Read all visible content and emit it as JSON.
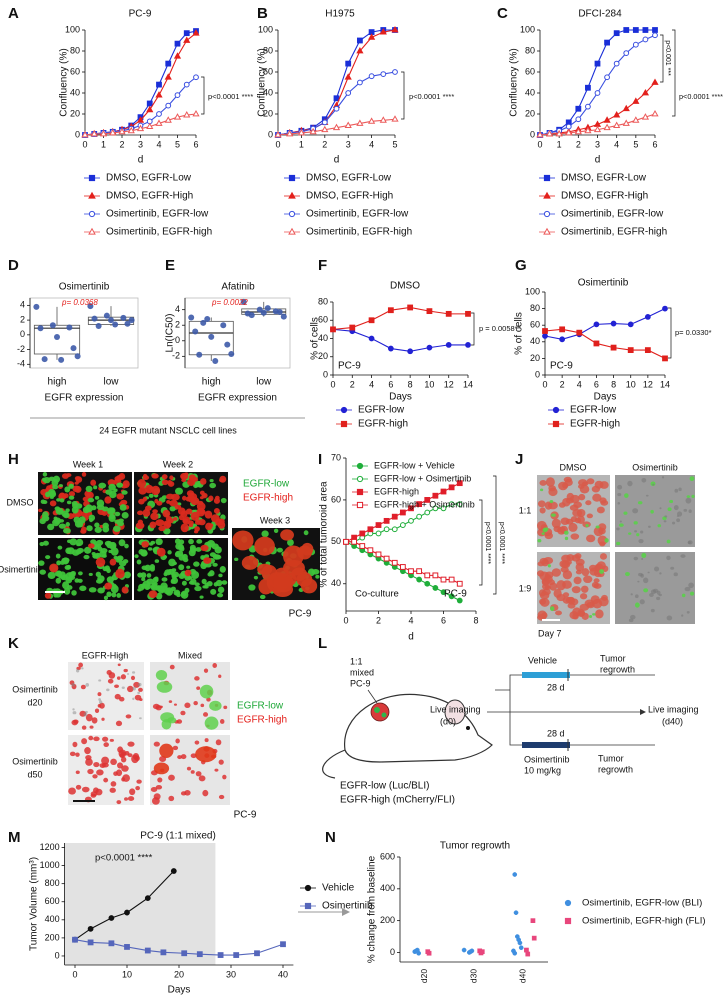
{
  "chart_data": [
    {
      "type": "line",
      "panel": "A",
      "title": "PC-9",
      "x_label": "d",
      "y_label": "Confluency (%)",
      "x": [
        0,
        0.5,
        1,
        1.5,
        2,
        2.5,
        3,
        3.5,
        4,
        4.5,
        5,
        5.5,
        6
      ],
      "xlim": [
        0,
        6
      ],
      "xticks": [
        0,
        1,
        2,
        3,
        4,
        5,
        6
      ],
      "ylim": [
        0,
        100
      ],
      "yticks": [
        0,
        20,
        40,
        60,
        80,
        100
      ],
      "series": [
        {
          "name": "DMSO, EGFR-Low",
          "color": "#1a2fd8",
          "marker": "square",
          "filled": true,
          "values": [
            0,
            1,
            2,
            3,
            5,
            9,
            17,
            30,
            48,
            68,
            87,
            97,
            99
          ]
        },
        {
          "name": "DMSO, EGFR-High",
          "color": "#e3201c",
          "marker": "triangle",
          "filled": true,
          "values": [
            0,
            1,
            2,
            3,
            5,
            8,
            14,
            24,
            38,
            55,
            75,
            90,
            97
          ]
        },
        {
          "name": "Osimertinib, EGFR-low",
          "color": "#3a4fe0",
          "marker": "circle",
          "filled": false,
          "values": [
            0,
            1,
            2,
            3,
            4,
            6,
            9,
            13,
            20,
            28,
            38,
            48,
            55
          ]
        },
        {
          "name": "Osimertinib, EGFR-high",
          "color": "#ec5a5a",
          "marker": "triangle",
          "filled": false,
          "values": [
            0,
            1,
            1,
            2,
            3,
            4,
            6,
            8,
            11,
            14,
            17,
            19,
            20
          ]
        }
      ],
      "annotations": [
        "p<0.0001 ****"
      ]
    },
    {
      "type": "line",
      "panel": "B",
      "title": "H1975",
      "x_label": "d",
      "y_label": "Confluency (%)",
      "x": [
        0,
        0.5,
        1,
        1.5,
        2,
        2.5,
        3,
        3.5,
        4,
        4.5,
        5
      ],
      "xlim": [
        0,
        5
      ],
      "xticks": [
        0,
        1,
        2,
        3,
        4,
        5
      ],
      "ylim": [
        0,
        100
      ],
      "yticks": [
        0,
        20,
        40,
        60,
        80,
        100
      ],
      "series": [
        {
          "name": "DMSO, EGFR-Low",
          "color": "#1a2fd8",
          "marker": "square",
          "filled": true,
          "values": [
            0,
            2,
            4,
            7,
            15,
            35,
            68,
            90,
            98,
            100,
            100
          ]
        },
        {
          "name": "DMSO, EGFR-High",
          "color": "#e3201c",
          "marker": "triangle",
          "filled": true,
          "values": [
            0,
            2,
            4,
            6,
            12,
            28,
            55,
            80,
            93,
            98,
            100
          ]
        },
        {
          "name": "Osimertinib, EGFR-low",
          "color": "#3a4fe0",
          "marker": "circle",
          "filled": false,
          "values": [
            0,
            2,
            3,
            6,
            12,
            25,
            40,
            50,
            56,
            58,
            60
          ]
        },
        {
          "name": "Osimertinib, EGFR-high",
          "color": "#ec5a5a",
          "marker": "triangle",
          "filled": false,
          "values": [
            0,
            1,
            2,
            3,
            5,
            7,
            9,
            11,
            13,
            14,
            15
          ]
        }
      ],
      "annotations": [
        "p<0.0001 ****"
      ]
    },
    {
      "type": "line",
      "panel": "C",
      "title": "DFCI-284",
      "x_label": "d",
      "y_label": "Confluency (%)",
      "x": [
        0,
        0.5,
        1,
        1.5,
        2,
        2.5,
        3,
        3.5,
        4,
        4.5,
        5,
        5.5,
        6
      ],
      "xlim": [
        0,
        6
      ],
      "xticks": [
        0,
        1,
        2,
        3,
        4,
        5,
        6
      ],
      "ylim": [
        0,
        100
      ],
      "yticks": [
        0,
        20,
        40,
        60,
        80,
        100
      ],
      "series": [
        {
          "name": "DMSO, EGFR-Low",
          "color": "#1a2fd8",
          "marker": "square",
          "filled": true,
          "values": [
            0,
            2,
            5,
            12,
            25,
            45,
            68,
            88,
            97,
            100,
            100,
            100,
            100
          ]
        },
        {
          "name": "DMSO, EGFR-High",
          "color": "#e3201c",
          "marker": "triangle",
          "filled": true,
          "values": [
            0,
            1,
            2,
            3,
            5,
            7,
            10,
            14,
            19,
            25,
            32,
            40,
            50
          ]
        },
        {
          "name": "Osimertinib, EGFR-low",
          "color": "#3a4fe0",
          "marker": "circle",
          "filled": false,
          "values": [
            0,
            2,
            4,
            8,
            15,
            27,
            40,
            55,
            68,
            78,
            86,
            91,
            95
          ]
        },
        {
          "name": "Osimertinib, EGFR-high",
          "color": "#ec5a5a",
          "marker": "triangle",
          "filled": false,
          "values": [
            0,
            1,
            1,
            2,
            3,
            4,
            5,
            7,
            9,
            11,
            14,
            17,
            20
          ]
        }
      ],
      "annotations": [
        "p<0.001 ***",
        "p<0.0001 ****"
      ]
    },
    {
      "type": "box",
      "panel": "D",
      "title": "Osimertinib",
      "x_label": "EGFR expression",
      "categories": [
        "high",
        "low"
      ],
      "ylim": [
        -4.5,
        5
      ],
      "yticks": [
        -4,
        -2,
        0,
        2,
        4
      ],
      "color": "#3d5aa8",
      "boxes": [
        {
          "whisker_low": -3.4,
          "q1": -2.6,
          "median": 0.9,
          "q3": 1.3,
          "whisker_high": 3.8
        },
        {
          "whisker_low": 1.2,
          "q1": 1.4,
          "median": 2.0,
          "q3": 2.4,
          "whisker_high": 3.9
        }
      ],
      "points": [
        [
          3.8,
          1.3,
          1.0,
          0.9,
          -0.3,
          -1.8,
          -3.3,
          -3.4,
          -2.9
        ],
        [
          3.9,
          2.6,
          2.3,
          2.2,
          2.0,
          1.5,
          1.2,
          1.4,
          2.0
        ]
      ],
      "annotations": [
        "p= 0.0368"
      ]
    },
    {
      "type": "box",
      "panel": "E",
      "title": "Afatinib",
      "x_label": "EGFR expression",
      "y_label": "Ln(IC50)",
      "categories": [
        "high",
        "low"
      ],
      "ylim": [
        -3.5,
        5.5
      ],
      "yticks": [
        -2,
        0,
        2,
        4
      ],
      "color": "#3d5aa8",
      "boxes": [
        {
          "whisker_low": -2.6,
          "q1": -1.8,
          "median": 1.0,
          "q3": 2.5,
          "whisker_high": 3.0
        },
        {
          "whisker_low": 3.1,
          "q1": 3.4,
          "median": 3.7,
          "q3": 4.1,
          "whisker_high": 5.0
        }
      ],
      "points": [
        [
          3.0,
          2.8,
          2.0,
          1.2,
          0.5,
          -0.5,
          -1.8,
          -2.6,
          -1.7,
          2.3
        ],
        [
          5.0,
          4.0,
          3.8,
          3.5,
          3.6,
          3.7,
          3.3,
          4.2,
          3.1
        ]
      ],
      "annotations": [
        "p= 0.0022"
      ]
    },
    {
      "type": "line",
      "panel": "F",
      "title": "DMSO",
      "x_label": "Days",
      "y_label": "% of cells",
      "x": [
        0,
        2,
        4,
        6,
        8,
        10,
        12,
        14
      ],
      "xlim": [
        0,
        14
      ],
      "xticks": [
        0,
        2,
        4,
        6,
        8,
        10,
        12,
        14
      ],
      "ylim": [
        0,
        80
      ],
      "yticks": [
        0,
        20,
        40,
        60,
        80
      ],
      "series": [
        {
          "name": "EGFR-low",
          "color": "#2222d4",
          "marker": "circle",
          "filled": true,
          "values": [
            50,
            48,
            40,
            29,
            26,
            30,
            33,
            33
          ]
        },
        {
          "name": "EGFR-high",
          "color": "#e0201c",
          "marker": "square",
          "filled": true,
          "values": [
            50,
            52,
            60,
            71,
            74,
            70,
            67,
            67
          ]
        }
      ],
      "annotations": [
        "p = 0.0058**",
        "PC-9"
      ]
    },
    {
      "type": "line",
      "panel": "G",
      "title": "Osimertinib",
      "x_label": "Days",
      "y_label": "% of cells",
      "x": [
        0,
        2,
        4,
        6,
        8,
        10,
        12,
        14
      ],
      "xlim": [
        0,
        14
      ],
      "xticks": [
        0,
        2,
        4,
        6,
        8,
        10,
        12,
        14
      ],
      "ylim": [
        0,
        100
      ],
      "yticks": [
        0,
        20,
        40,
        60,
        80,
        100
      ],
      "series": [
        {
          "name": "EGFR-low",
          "color": "#2222d4",
          "marker": "circle",
          "filled": true,
          "values": [
            47,
            43,
            49,
            61,
            62,
            61,
            70,
            80
          ]
        },
        {
          "name": "EGFR-high",
          "color": "#e0201c",
          "marker": "square",
          "filled": true,
          "values": [
            53,
            55,
            51,
            38,
            33,
            30,
            30,
            20
          ]
        }
      ],
      "annotations": [
        "p= 0.0330*",
        "PC-9"
      ]
    },
    {
      "type": "line",
      "panel": "I",
      "x_label": "d",
      "y_label": "% of total tumoroid area",
      "x": [
        0,
        0.5,
        1,
        1.5,
        2,
        2.5,
        3,
        3.5,
        4,
        4.5,
        5,
        5.5,
        6,
        6.5,
        7
      ],
      "xlim": [
        0,
        8
      ],
      "xticks": [
        0,
        2,
        4,
        6,
        8
      ],
      "ylim": [
        33.5,
        70
      ],
      "yticks": [
        40,
        50,
        60,
        70
      ],
      "series": [
        {
          "name": "EGFR-low + Vehicle",
          "color": "#1fae3a",
          "marker": "circle",
          "filled": true,
          "values": [
            50,
            49,
            48,
            47,
            46,
            45,
            44,
            43,
            42,
            41,
            40,
            39,
            38,
            37,
            36
          ]
        },
        {
          "name": "EGFR-low + Osimertinib",
          "color": "#1fae3a",
          "marker": "circle",
          "filled": false,
          "values": [
            50,
            50,
            51,
            52,
            52,
            53,
            53,
            54,
            55,
            56,
            57,
            58,
            58,
            59,
            59
          ]
        },
        {
          "name": "EGFR-high",
          "color": "#e01e2a",
          "marker": "square",
          "filled": true,
          "values": [
            50,
            51,
            52,
            53,
            54,
            55,
            56,
            57,
            58,
            59,
            60,
            61,
            62,
            63,
            64
          ]
        },
        {
          "name": "EGFR-high + Osimertinib",
          "color": "#e01e2a",
          "marker": "square",
          "filled": false,
          "values": [
            50,
            50,
            49,
            48,
            47,
            46,
            45,
            44,
            43,
            43,
            42,
            42,
            41,
            41,
            40
          ]
        }
      ],
      "annotations": [
        "p<0.0001 ****",
        "p<0.0001 ****",
        "Co-culture",
        "PC-9"
      ]
    },
    {
      "type": "line",
      "panel": "M",
      "title": "PC-9 (1:1 mixed)",
      "x_label": "Days",
      "y_label": "Tumor Volume (mm³)",
      "xlim": [
        -2,
        42
      ],
      "xticks": [
        0,
        10,
        20,
        30,
        40
      ],
      "ylim": [
        -100,
        1250
      ],
      "yticks": [
        0,
        200,
        400,
        600,
        800,
        1000,
        1200
      ],
      "shade": [
        -2,
        27
      ],
      "shade_color": "#e2e2e2",
      "series": [
        {
          "name": "Vehicle",
          "color": "#111111",
          "marker": "circle",
          "filled": true,
          "x": [
            0,
            3,
            7,
            10,
            14,
            19
          ],
          "values": [
            180,
            300,
            420,
            480,
            640,
            940
          ]
        },
        {
          "name": "Osimertinib",
          "color": "#5566bb",
          "marker": "square",
          "filled": true,
          "x": [
            0,
            3,
            7,
            10,
            14,
            17,
            21,
            24,
            28,
            31,
            35,
            40
          ],
          "values": [
            180,
            150,
            140,
            100,
            60,
            40,
            30,
            20,
            10,
            10,
            30,
            130
          ]
        }
      ],
      "annotations": [
        "p<0.0001 ****"
      ]
    },
    {
      "type": "strip",
      "panel": "N",
      "title": "Tumor regrowth",
      "y_label": "% change from baseline",
      "categories": [
        "d20",
        "d30",
        "d40"
      ],
      "ylim": [
        -60,
        600
      ],
      "yticks": [
        0,
        200,
        400,
        600
      ],
      "series": [
        {
          "name": "Osimertinib, EGFR-low (BLI)",
          "color": "#3f8fe0",
          "marker": "circle",
          "filled": true,
          "x": [
            "d20",
            "d20",
            "d20",
            "d20",
            "d30",
            "d30",
            "d30",
            "d30",
            "d40",
            "d40",
            "d40",
            "d40",
            "d40",
            "d40",
            "d40",
            "d40"
          ],
          "values": [
            5,
            10,
            15,
            -5,
            0,
            5,
            10,
            15,
            490,
            250,
            100,
            80,
            60,
            30,
            10,
            -5
          ]
        },
        {
          "name": "Osimertinib, EGFR-high (FLI)",
          "color": "#e8467c",
          "marker": "square",
          "filled": true,
          "x": [
            "d20",
            "d20",
            "d30",
            "d30",
            "d30",
            "d40",
            "d40",
            "d40",
            "d40"
          ],
          "values": [
            5,
            -5,
            10,
            -3,
            5,
            200,
            90,
            15,
            -10
          ]
        }
      ]
    }
  ],
  "captions": {
    "DE": "24 EGFR mutant NSCLC cell lines"
  },
  "image_panels": {
    "H": {
      "letter": "H",
      "columns": [
        "Week 1",
        "Week 2"
      ],
      "rows": [
        "DMSO",
        "Osimertinib"
      ],
      "extra_column": "Week 3",
      "legend": [
        "EGFR-low",
        "EGFR-high"
      ],
      "cell_line": "PC-9"
    },
    "J": {
      "letter": "J",
      "columns": [
        "DMSO",
        "Osimertinib"
      ],
      "rows": [
        "1:1",
        "1:9"
      ],
      "time": "Day 7"
    },
    "K": {
      "letter": "K",
      "columns": [
        "EGFR-High",
        "Mixed"
      ],
      "rows": [
        [
          "Osimertinib",
          "d20"
        ],
        [
          "Osimertinib",
          "d50"
        ]
      ],
      "legend": [
        "EGFR-low",
        "EGFR-high"
      ],
      "cell_line": "PC-9"
    }
  },
  "diagram": {
    "letter": "L",
    "mix": [
      "1:1",
      "mixed",
      "PC-9"
    ],
    "vehicle": "Vehicle",
    "osimertinib": "Osimertinib",
    "dose": "10 mg/kg",
    "duration": [
      "28 d",
      "28 d"
    ],
    "regrowth": [
      "Tumor",
      "regrowth",
      "Tumor",
      "regrowth"
    ],
    "imaging": [
      "Live imaging",
      "(d0)",
      "Live imaging",
      "(d40)"
    ],
    "reporters": [
      "EGFR-low (Luc/BLI)",
      "EGFR-high (mCherry/FLI)"
    ]
  }
}
